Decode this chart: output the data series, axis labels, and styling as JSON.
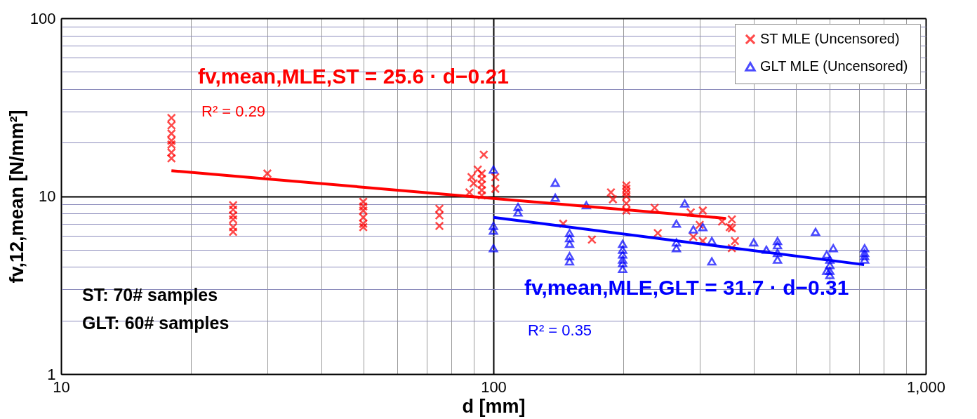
{
  "chart_data": {
    "type": "scatter",
    "xlabel": "d [mm]",
    "ylabel": "fv,12,mean [N/mm²]",
    "log": "xy",
    "grid": true,
    "legend": "top right",
    "xlim": [
      10,
      1000
    ],
    "ylim": [
      1,
      100
    ],
    "xticks": [
      10,
      {
        "value": 20,
        "label": null
      },
      {
        "value": 30,
        "label": null
      },
      {
        "value": 40,
        "label": null
      },
      {
        "value": 50,
        "label": null
      },
      {
        "value": 60,
        "label": null
      },
      {
        "value": 70,
        "label": null
      },
      {
        "value": 80,
        "label": null
      },
      {
        "value": 90,
        "label": null
      },
      100,
      {
        "value": 200,
        "label": null
      },
      {
        "value": 300,
        "label": null
      },
      {
        "value": 400,
        "label": null
      },
      {
        "value": 500,
        "label": null
      },
      {
        "value": 600,
        "label": null
      },
      {
        "value": 700,
        "label": null
      },
      {
        "value": 800,
        "label": null
      },
      {
        "value": 900,
        "label": null
      },
      {
        "value": 1000,
        "label": "1,000"
      }
    ],
    "yticks": [
      1,
      {
        "value": 2,
        "label": null
      },
      {
        "value": 3,
        "label": null
      },
      {
        "value": 4,
        "label": null
      },
      {
        "value": 5,
        "label": null
      },
      {
        "value": 6,
        "label": null
      },
      {
        "value": 7,
        "label": null
      },
      {
        "value": 8,
        "label": null
      },
      {
        "value": 9,
        "label": null
      },
      10,
      {
        "value": 20,
        "label": null
      },
      {
        "value": 30,
        "label": null
      },
      {
        "value": 40,
        "label": null
      },
      {
        "value": 50,
        "label": null
      },
      {
        "value": 60,
        "label": null
      },
      {
        "value": 70,
        "label": null
      },
      {
        "value": 80,
        "label": null
      },
      {
        "value": 90,
        "label": null
      },
      100
    ],
    "series": [
      {
        "name": "ST    MLE (Uncensored)",
        "marker": "cross",
        "color": "#ff0000",
        "x": [
          18,
          18,
          18,
          18,
          18,
          18,
          18,
          25,
          25,
          25,
          25,
          25,
          25,
          30,
          50,
          50,
          50,
          50,
          50,
          50,
          75,
          75,
          75,
          88,
          89,
          90,
          92,
          95,
          94,
          94,
          94,
          94,
          94,
          101,
          101,
          145,
          169,
          187,
          189,
          203,
          203,
          203,
          203,
          203,
          203,
          236,
          240,
          286,
          305,
          300,
          290,
          305,
          338,
          356,
          352,
          356,
          362,
          356
        ],
        "values": [
          27.5,
          25,
          22.5,
          20.5,
          19.5,
          17.6,
          16.3,
          8.9,
          8.4,
          7.8,
          7.4,
          6.7,
          6.3,
          13.4,
          9.3,
          8.75,
          8.3,
          7.6,
          7.0,
          6.7,
          8.5,
          7.8,
          6.8,
          10.5,
          12.8,
          11.8,
          14.1,
          17.1,
          13.4,
          12.5,
          11.6,
          10.8,
          10.1,
          12.8,
          11.0,
          7.0,
          5.7,
          10.5,
          9.6,
          11.5,
          11.0,
          10.5,
          10.0,
          9.1,
          8.3,
          8.6,
          6.2,
          8.1,
          8.3,
          6.9,
          5.9,
          5.6,
          7.2,
          7.4,
          6.7,
          6.6,
          5.6,
          5.1
        ]
      },
      {
        "name": "GLT MLE (Uncensored)",
        "marker": "triangle",
        "color": "#0000ff",
        "x": [
          100,
          100,
          100,
          100,
          114,
          114,
          139,
          139,
          150,
          150,
          150,
          150,
          150,
          164,
          199,
          199,
          199,
          199,
          199,
          199,
          265,
          265,
          265,
          277,
          290,
          305,
          320,
          320,
          400,
          428,
          454,
          454,
          454,
          454,
          556,
          611,
          590,
          600,
          600,
          600,
          600,
          590,
          722,
          722,
          722,
          722
        ],
        "values": [
          14.1,
          6.8,
          6.4,
          5.1,
          8.7,
          8.1,
          11.9,
          9.8,
          6.2,
          5.8,
          5.4,
          4.6,
          4.3,
          8.9,
          5.4,
          5.0,
          4.7,
          4.4,
          4.2,
          3.9,
          7.0,
          5.5,
          5.1,
          9.1,
          6.5,
          6.7,
          5.6,
          4.3,
          5.5,
          5.0,
          5.6,
          5.3,
          4.8,
          4.4,
          6.3,
          5.1,
          4.7,
          4.4,
          4.1,
          3.8,
          3.6,
          3.8,
          5.1,
          4.8,
          4.6,
          4.4
        ]
      },
      {
        "type": "line",
        "color": "#ff0000",
        "x": [
          18,
          345
        ],
        "values": [
          13.9,
          7.5
        ]
      },
      {
        "type": "line",
        "color": "#0000ff",
        "x": [
          100,
          720
        ],
        "values": [
          7.6,
          4.12
        ]
      }
    ],
    "annotations": [
      "fv,mean,MLE,ST = 25.6 · d−0.21",
      "R² = 0.29",
      "fv,mean,MLE,GLT = 31.7 · d−0.31",
      "R² = 0.35",
      "ST:     70# samples",
      "GLT:   60# samples"
    ]
  }
}
